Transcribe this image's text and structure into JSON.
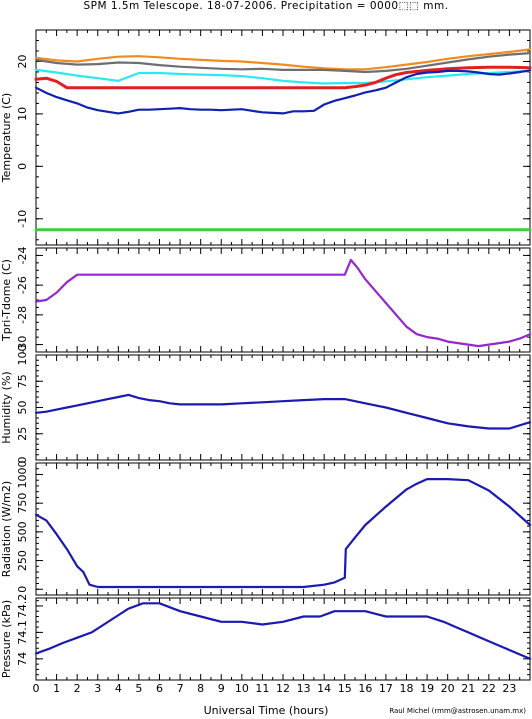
{
  "title": "SPM 1.5m Telescope. 18-07-2006. Precipitation = 0000⬚⬚ mm.",
  "xlabel": "Universal Time (hours)",
  "credit": "Raul Michel (rmm@astrosen.unam.mx)",
  "colors": {
    "frame": "#000000",
    "orange": "#f08c1e",
    "gray": "#6e6e6e",
    "cyan": "#2ee8f0",
    "red": "#e02020",
    "navy": "#1020b0",
    "purple": "#9428d0",
    "green": "#3ccc3c",
    "blue": "#1a1ab0"
  },
  "chart_data": [
    {
      "type": "scatter",
      "ylabel": "Temperature (C)",
      "xlim": [
        0,
        24
      ],
      "ylim": [
        -15,
        26
      ],
      "yticks": [
        -10,
        0,
        10,
        20
      ],
      "yticks_minor_step": 2,
      "series": [
        {
          "color": "orange",
          "x": [
            0,
            1,
            2,
            3,
            4,
            5,
            6,
            7,
            8,
            9,
            10,
            11,
            12,
            13,
            14,
            15,
            16,
            17,
            18,
            19,
            20,
            21,
            22,
            23,
            24
          ],
          "y": [
            20.7,
            20.2,
            20.0,
            20.5,
            20.9,
            21.0,
            20.8,
            20.5,
            20.3,
            20.1,
            20.0,
            19.7,
            19.4,
            19.0,
            18.7,
            18.5,
            18.5,
            18.9,
            19.4,
            19.9,
            20.5,
            21.0,
            21.4,
            21.8,
            22.3
          ]
        },
        {
          "color": "gray",
          "x": [
            0,
            1,
            2,
            3,
            4,
            5,
            6,
            7,
            8,
            9,
            10,
            11,
            12,
            13,
            14,
            15,
            16,
            17,
            18,
            19,
            20,
            21,
            22,
            23,
            24
          ],
          "y": [
            20.3,
            19.7,
            19.4,
            19.5,
            19.8,
            19.7,
            19.3,
            19.0,
            18.8,
            18.6,
            18.5,
            18.6,
            18.4,
            18.4,
            18.4,
            18.2,
            18.0,
            18.2,
            18.6,
            19.2,
            19.8,
            20.4,
            20.9,
            21.3,
            21.6
          ]
        },
        {
          "color": "cyan",
          "x": [
            0,
            1,
            2,
            3,
            4,
            5,
            6,
            7,
            8,
            9,
            10,
            11,
            12,
            13,
            14,
            15,
            16,
            17,
            18,
            19,
            20,
            21,
            22,
            23,
            24
          ],
          "y": [
            18.4,
            17.9,
            17.3,
            16.8,
            16.3,
            17.8,
            17.8,
            17.6,
            17.5,
            17.4,
            17.2,
            16.8,
            16.3,
            16.0,
            15.8,
            15.9,
            15.9,
            16.2,
            16.6,
            17.0,
            17.3,
            17.6,
            17.8,
            18.0,
            18.2
          ]
        },
        {
          "color": "red",
          "x": [
            0,
            0.5,
            1,
            1.5,
            2,
            3,
            4,
            5,
            6,
            7,
            8,
            9,
            10,
            11,
            12,
            13,
            14,
            15,
            15.5,
            16,
            16.5,
            17,
            17.5,
            18,
            19,
            20,
            21,
            22,
            23,
            24
          ],
          "y": [
            16.6,
            16.8,
            16.2,
            15.0,
            15.0,
            15.0,
            15.0,
            15.0,
            15.0,
            15.0,
            15.0,
            15.0,
            15.0,
            15.0,
            15.0,
            15.0,
            15.0,
            15.0,
            15.2,
            15.5,
            16.0,
            16.8,
            17.5,
            17.9,
            18.3,
            18.6,
            18.8,
            18.9,
            18.9,
            18.8
          ]
        },
        {
          "color": "navy",
          "x": [
            0,
            0.5,
            1,
            1.5,
            2,
            2.5,
            3,
            3.5,
            4,
            4.5,
            5,
            5.5,
            6,
            6.5,
            7,
            7.5,
            8,
            8.5,
            9,
            9.5,
            10,
            10.5,
            11,
            11.5,
            12,
            12.5,
            13,
            13.5,
            14,
            14.5,
            15,
            15.5,
            16,
            16.5,
            17,
            17.5,
            18,
            18.5,
            19,
            19.5,
            20,
            20.5,
            21,
            21.5,
            22,
            22.5,
            23,
            23.5,
            24
          ],
          "y": [
            15.0,
            14.0,
            13.2,
            12.6,
            12.0,
            11.2,
            10.7,
            10.4,
            10.1,
            10.4,
            10.8,
            10.8,
            10.9,
            11.0,
            11.1,
            10.9,
            10.8,
            10.8,
            10.7,
            10.8,
            10.9,
            10.6,
            10.3,
            10.2,
            10.1,
            10.5,
            10.5,
            10.6,
            11.8,
            12.5,
            13.0,
            13.5,
            14.1,
            14.5,
            15.0,
            16.0,
            17.0,
            17.6,
            17.9,
            18.0,
            18.2,
            18.2,
            18.1,
            17.9,
            17.6,
            17.5,
            17.7,
            18.0,
            18.3
          ]
        },
        {
          "color": "green",
          "x": [
            0,
            24
          ],
          "y": [
            -12.1,
            -12.1
          ]
        }
      ]
    },
    {
      "type": "scatter",
      "ylabel": "Tpri-Tdome (C)",
      "xlim": [
        0,
        24
      ],
      "ylim": [
        -30.5,
        -23.5
      ],
      "yticks": [
        -30,
        -28,
        -26,
        -24
      ],
      "yticks_minor_step": 0.5,
      "series": [
        {
          "color": "purple",
          "x": [
            0,
            0.5,
            1,
            1.5,
            2,
            3,
            4,
            5,
            6,
            7,
            8,
            9,
            10,
            11,
            12,
            13,
            14,
            15,
            15.3,
            15.6,
            16,
            16.5,
            17,
            17.5,
            18,
            18.5,
            19,
            19.5,
            20,
            20.5,
            21,
            21.5,
            22,
            22.5,
            23,
            23.5,
            24
          ],
          "y": [
            -27.1,
            -27.0,
            -26.5,
            -25.8,
            -25.3,
            -25.3,
            -25.3,
            -25.3,
            -25.3,
            -25.3,
            -25.3,
            -25.3,
            -25.3,
            -25.3,
            -25.3,
            -25.3,
            -25.3,
            -25.3,
            -24.3,
            -24.8,
            -25.6,
            -26.4,
            -27.2,
            -28.0,
            -28.8,
            -29.3,
            -29.5,
            -29.6,
            -29.8,
            -29.9,
            -30.0,
            -30.1,
            -30.0,
            -29.9,
            -29.8,
            -29.6,
            -29.3
          ]
        }
      ]
    },
    {
      "type": "line",
      "ylabel": "Humidity (%)",
      "xlim": [
        0,
        24
      ],
      "ylim": [
        0,
        100
      ],
      "yticks": [
        0,
        25,
        50,
        75,
        100
      ],
      "yticks_minor_step": 5,
      "series": [
        {
          "color": "blue",
          "x": [
            0,
            0.5,
            1,
            1.5,
            2,
            2.5,
            3,
            3.5,
            4,
            4.5,
            5,
            5.5,
            6,
            6.5,
            7,
            8,
            9,
            10,
            11,
            12,
            13,
            14,
            15,
            16,
            17,
            18,
            19,
            20,
            21,
            22,
            23,
            24
          ],
          "y": [
            45,
            46,
            48,
            50,
            52,
            54,
            56,
            58,
            60,
            62,
            59,
            57,
            56,
            54,
            53,
            53,
            53,
            54,
            55,
            56,
            57,
            58,
            58,
            54,
            50,
            45,
            40,
            35,
            32,
            30,
            30,
            36
          ]
        }
      ]
    },
    {
      "type": "line",
      "ylabel": "Radiation (W/m2)",
      "xlim": [
        0,
        24
      ],
      "ylim": [
        -50,
        1100
      ],
      "yticks": [
        0,
        250,
        500,
        750,
        1000
      ],
      "yticks_minor_step": 50,
      "series": [
        {
          "color": "blue",
          "x": [
            0,
            0.5,
            1,
            1.5,
            2,
            2.3,
            2.6,
            3,
            4,
            5,
            6,
            7,
            8,
            9,
            10,
            11,
            12,
            13,
            14,
            14.5,
            15,
            15.05,
            15.5,
            16,
            17,
            18,
            18.5,
            19,
            20,
            21,
            22,
            23,
            23.5,
            24
          ],
          "y": [
            650,
            600,
            480,
            350,
            200,
            150,
            40,
            20,
            20,
            20,
            20,
            20,
            20,
            20,
            20,
            20,
            20,
            20,
            40,
            60,
            100,
            350,
            450,
            560,
            720,
            870,
            920,
            960,
            960,
            950,
            860,
            720,
            640,
            560
          ]
        }
      ]
    },
    {
      "type": "scatter",
      "ylabel": "Pressure (kPa)",
      "xlim": [
        0,
        24
      ],
      "ylim": [
        73.92,
        74.23
      ],
      "yticks": [
        74,
        74.1,
        74.2
      ],
      "yticks_minor_step": 0.02,
      "series": [
        {
          "color": "blue",
          "x": [
            0,
            0.7,
            1.3,
            2.0,
            2.7,
            3.3,
            3.9,
            4.5,
            5.2,
            6.0,
            7.0,
            8.0,
            9.0,
            10.0,
            11.0,
            12.0,
            13.0,
            13.8,
            14.5,
            15.3,
            16.0,
            17.0,
            18.0,
            19.0,
            19.8,
            20.4,
            21.0,
            21.6,
            22.2,
            22.8,
            23.4,
            24.0
          ],
          "y": [
            74.02,
            74.04,
            74.06,
            74.08,
            74.1,
            74.13,
            74.16,
            74.19,
            74.21,
            74.21,
            74.18,
            74.16,
            74.14,
            74.14,
            74.13,
            74.14,
            74.16,
            74.16,
            74.18,
            74.18,
            74.18,
            74.16,
            74.16,
            74.16,
            74.14,
            74.12,
            74.1,
            74.08,
            74.06,
            74.04,
            74.02,
            74.0
          ]
        }
      ]
    }
  ]
}
